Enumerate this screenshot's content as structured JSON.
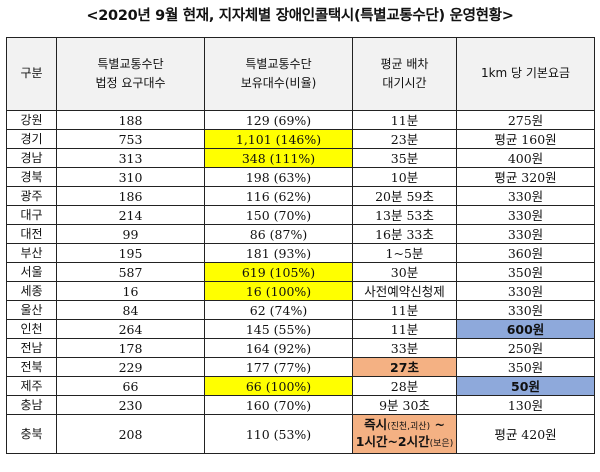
{
  "title": "<2020년 9월 현재, 지자체별 장애인콜택시(특별교통수단) 운영현황>",
  "headers": [
    {
      "line1": "구분",
      "line2": ""
    },
    {
      "line1": "특별교통수단",
      "line2": "법정 요구대수"
    },
    {
      "line1": "특별교통수단",
      "line2": "보유대수(비율)"
    },
    {
      "line1": "평균 배차",
      "line2": "대기시간"
    },
    {
      "line1": "1km 당 기본요금",
      "line2": ""
    }
  ],
  "rows": [
    {
      "region": "강원",
      "required": "188",
      "owned": "129 (69%)",
      "wait": "11분",
      "fare": "275원"
    },
    {
      "region": "경기",
      "required": "753",
      "owned": "1,101 (146%)",
      "wait": "23분",
      "fare": "평균 160원"
    },
    {
      "region": "경남",
      "required": "313",
      "owned": "348 (111%)",
      "wait": "35분",
      "fare": "400원"
    },
    {
      "region": "경북",
      "required": "310",
      "owned": "198 (63%)",
      "wait": "10분",
      "fare": "평균 320원"
    },
    {
      "region": "광주",
      "required": "186",
      "owned": "116 (62%)",
      "wait": "20분 59초",
      "fare": "330원"
    },
    {
      "region": "대구",
      "required": "214",
      "owned": "150 (70%)",
      "wait": "13분 53초",
      "fare": "330원"
    },
    {
      "region": "대전",
      "required": "99",
      "owned": "86 (87%)",
      "wait": "16분 33초",
      "fare": "330원"
    },
    {
      "region": "부산",
      "required": "195",
      "owned": "181 (93%)",
      "wait": "1~5분",
      "fare": "360원"
    },
    {
      "region": "서울",
      "required": "587",
      "owned": "619 (105%)",
      "wait": "30분",
      "fare": "350원"
    },
    {
      "region": "세종",
      "required": "16",
      "owned": "16 (100%)",
      "wait": "사전예약신청제",
      "fare": "330원"
    },
    {
      "region": "울산",
      "required": "84",
      "owned": "62 (74%)",
      "wait": "11분",
      "fare": "330원"
    },
    {
      "region": "인천",
      "required": "264",
      "owned": "145 (55%)",
      "wait": "11분",
      "fare": "600원"
    },
    {
      "region": "전남",
      "required": "178",
      "owned": "164 (92%)",
      "wait": "33분",
      "fare": "250원"
    },
    {
      "region": "전북",
      "required": "229",
      "owned": "177 (77%)",
      "wait": "27초",
      "fare": "350원"
    },
    {
      "region": "제주",
      "required": "66",
      "owned": "66 (100%)",
      "wait": "28분",
      "fare": "50원"
    },
    {
      "region": "충남",
      "required": "230",
      "owned": "160 (70%)",
      "wait": "9분 30초",
      "fare": "130원"
    }
  ],
  "last_row": {
    "region": "충북",
    "required": "208",
    "owned": "110 (53%)",
    "wait_line1": "즉시",
    "wait_line1_note": "(진천,괴산)",
    "wait_line1_suffix": " ~",
    "wait_line2": "1시간~2시간",
    "wait_line2_note": "(보은)",
    "fare": "평균 420원"
  },
  "highlight_colors": {
    "yellow": "#ffff00",
    "orange": "#f4b183",
    "blue": "#8ea9db"
  }
}
